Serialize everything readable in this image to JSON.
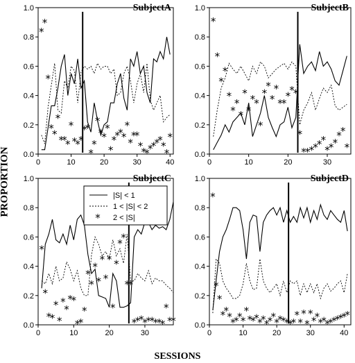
{
  "figure": {
    "xlabel": "SESSIONS",
    "ylabel": "PROPORTION",
    "legend": {
      "panel": "SubjectC",
      "entries": [
        "|S| < 1",
        "1 < |S| < 2",
        "2 < |S|"
      ]
    }
  },
  "chart_data": [
    {
      "type": "line",
      "title": "SubjectA",
      "xlim": [
        0,
        41
      ],
      "ylim": [
        0,
        1.0
      ],
      "xticks": [
        0,
        10,
        20,
        30,
        40
      ],
      "yticks": [
        0.0,
        0.2,
        0.4,
        0.6,
        0.8,
        1.0
      ],
      "phase_line_x": 13.5,
      "series": [
        {
          "name": "|S| < 1",
          "style": "solid",
          "x": [
            1,
            2,
            3,
            4,
            5,
            6,
            7,
            8,
            9,
            10,
            11,
            12,
            13,
            14,
            15,
            16,
            17,
            18,
            19,
            20,
            21,
            22,
            23,
            24,
            25,
            26,
            27,
            28,
            29,
            30,
            31,
            32,
            33,
            34,
            35,
            36,
            37,
            38,
            39,
            40
          ],
          "values": [
            0.03,
            0.03,
            0.18,
            0.33,
            0.33,
            0.45,
            0.6,
            0.68,
            0.4,
            0.55,
            0.48,
            0.65,
            0.45,
            0.5,
            0.22,
            0.15,
            0.35,
            0.23,
            0.13,
            0.2,
            0.22,
            0.35,
            0.35,
            0.48,
            0.55,
            0.38,
            0.3,
            0.65,
            0.6,
            0.7,
            0.55,
            0.6,
            0.42,
            0.35,
            0.65,
            0.63,
            0.7,
            0.65,
            0.8,
            0.68
          ]
        },
        {
          "name": "1 < |S| < 2",
          "style": "dotted",
          "x": [
            1,
            2,
            3,
            4,
            5,
            6,
            7,
            8,
            9,
            10,
            11,
            12,
            13,
            14,
            15,
            16,
            17,
            18,
            19,
            20,
            21,
            22,
            23,
            24,
            25,
            26,
            27,
            28,
            29,
            30,
            31,
            32,
            33,
            34,
            35,
            36,
            37,
            38,
            39,
            40
          ],
          "values": [
            0.13,
            0.07,
            0.32,
            0.47,
            0.62,
            0.3,
            0.28,
            0.5,
            0.45,
            0.6,
            0.57,
            0.35,
            0.56,
            0.6,
            0.58,
            0.6,
            0.55,
            0.62,
            0.58,
            0.6,
            0.6,
            0.55,
            0.58,
            0.4,
            0.42,
            0.55,
            0.6,
            0.5,
            0.35,
            0.48,
            0.55,
            0.42,
            0.62,
            0.37,
            0.3,
            0.35,
            0.4,
            0.22,
            0.25,
            0.27
          ]
        },
        {
          "name": "2 < |S|",
          "style": "asterisk",
          "x": [
            1,
            2,
            3,
            4,
            5,
            6,
            7,
            8,
            9,
            10,
            11,
            12,
            13,
            14,
            15,
            16,
            17,
            18,
            19,
            20,
            21,
            22,
            23,
            24,
            25,
            26,
            27,
            28,
            29,
            30,
            31,
            32,
            33,
            34,
            35,
            36,
            37,
            38,
            39,
            40
          ],
          "values": [
            0.84,
            0.9,
            0.52,
            0.18,
            0.14,
            0.25,
            0.1,
            0.1,
            0.07,
            0.2,
            0.09,
            0.07,
            0.1,
            0.17,
            0.18,
            0.01,
            0.07,
            0.23,
            0.15,
            0.12,
            0.18,
            0.03,
            0.1,
            0.13,
            0.15,
            0.12,
            0.2,
            0.08,
            0.13,
            0.13,
            0.06,
            0.02,
            0.01,
            0.04,
            0.06,
            0.08,
            0.1,
            0.06,
            0.01,
            0.12
          ]
        }
      ]
    },
    {
      "type": "line",
      "title": "SubjectB",
      "xlim": [
        0,
        36
      ],
      "ylim": [
        0,
        1.0
      ],
      "xticks": [
        0,
        10,
        20,
        30
      ],
      "yticks": [
        0.0,
        0.2,
        0.4,
        0.6,
        0.8,
        1.0
      ],
      "phase_line_x": 22.5,
      "series": [
        {
          "name": "|S| < 1",
          "style": "solid",
          "x": [
            1,
            2,
            3,
            4,
            5,
            6,
            7,
            8,
            9,
            10,
            11,
            12,
            13,
            14,
            15,
            16,
            17,
            18,
            19,
            20,
            21,
            22,
            23,
            24,
            25,
            26,
            27,
            28,
            29,
            30,
            31,
            32,
            33,
            34,
            35
          ],
          "values": [
            0.03,
            0.08,
            0.13,
            0.2,
            0.15,
            0.22,
            0.25,
            0.28,
            0.2,
            0.35,
            0.12,
            0.2,
            0.28,
            0.4,
            0.25,
            0.18,
            0.12,
            0.2,
            0.22,
            0.32,
            0.18,
            0.25,
            0.75,
            0.55,
            0.6,
            0.63,
            0.57,
            0.7,
            0.6,
            0.63,
            0.58,
            0.5,
            0.47,
            0.57,
            0.67
          ]
        },
        {
          "name": "1 < |S| < 2",
          "style": "dotted",
          "x": [
            1,
            2,
            3,
            4,
            5,
            6,
            7,
            8,
            9,
            10,
            11,
            12,
            13,
            14,
            15,
            16,
            17,
            18,
            19,
            20,
            21,
            22,
            23,
            24,
            25,
            26,
            27,
            28,
            29,
            30,
            31,
            32,
            33,
            34,
            35
          ],
          "values": [
            0.12,
            0.3,
            0.45,
            0.52,
            0.62,
            0.58,
            0.55,
            0.6,
            0.55,
            0.5,
            0.6,
            0.55,
            0.63,
            0.6,
            0.52,
            0.55,
            0.58,
            0.6,
            0.62,
            0.58,
            0.63,
            0.6,
            0.2,
            0.3,
            0.35,
            0.42,
            0.3,
            0.38,
            0.45,
            0.42,
            0.47,
            0.33,
            0.3,
            0.32,
            0.34
          ]
        },
        {
          "name": "2 < |S|",
          "style": "asterisk",
          "x": [
            1,
            2,
            3,
            4,
            5,
            6,
            7,
            8,
            9,
            10,
            11,
            12,
            13,
            14,
            15,
            16,
            17,
            18,
            19,
            20,
            21,
            22,
            23,
            24,
            25,
            26,
            27,
            28,
            29,
            30,
            31,
            32,
            33,
            34,
            35
          ],
          "values": [
            0.91,
            0.67,
            0.5,
            0.57,
            0.4,
            0.3,
            0.35,
            0.27,
            0.42,
            0.3,
            0.38,
            0.35,
            0.2,
            0.42,
            0.47,
            0.38,
            0.45,
            0.35,
            0.35,
            0.4,
            0.44,
            0.42,
            0.14,
            0.02,
            0.02,
            0.03,
            0.05,
            0.07,
            0.1,
            0.03,
            0.05,
            0.08,
            0.13,
            0.16,
            0.05
          ]
        }
      ]
    },
    {
      "type": "line",
      "title": "SubjectC",
      "xlim": [
        0,
        38
      ],
      "ylim": [
        0,
        1.0
      ],
      "xticks": [
        0,
        10,
        20,
        30
      ],
      "yticks": [
        0.0,
        0.2,
        0.4,
        0.6,
        0.8,
        1.0
      ],
      "phase_line_x": 25.5,
      "series": [
        {
          "name": "|S| < 1",
          "style": "solid",
          "x": [
            1,
            2,
            3,
            4,
            5,
            6,
            7,
            8,
            9,
            10,
            11,
            12,
            13,
            14,
            15,
            16,
            17,
            18,
            19,
            20,
            21,
            22,
            23,
            24,
            25,
            26,
            27,
            28,
            29,
            30,
            31,
            32,
            33,
            34,
            35,
            36,
            37,
            38
          ],
          "values": [
            0.25,
            0.55,
            0.62,
            0.72,
            0.58,
            0.56,
            0.62,
            0.55,
            0.68,
            0.58,
            0.72,
            0.75,
            0.68,
            0.48,
            0.35,
            0.38,
            0.2,
            0.19,
            0.18,
            0.12,
            0.35,
            0.3,
            0.12,
            0.12,
            0.13,
            0.15,
            0.6,
            0.65,
            0.62,
            0.7,
            0.7,
            0.65,
            0.68,
            0.66,
            0.67,
            0.65,
            0.72,
            0.84
          ]
        },
        {
          "name": "1 < |S| < 2",
          "style": "dotted",
          "x": [
            1,
            2,
            3,
            4,
            5,
            6,
            7,
            8,
            9,
            10,
            11,
            12,
            13,
            14,
            15,
            16,
            17,
            18,
            19,
            20,
            21,
            22,
            23,
            24,
            25,
            26,
            27,
            28,
            29,
            30,
            31,
            32,
            33,
            34,
            35,
            36,
            37,
            38
          ],
          "values": [
            0.3,
            0.28,
            0.35,
            0.28,
            0.4,
            0.3,
            0.32,
            0.43,
            0.38,
            0.3,
            0.37,
            0.25,
            0.2,
            0.2,
            0.48,
            0.6,
            0.55,
            0.47,
            0.5,
            0.45,
            0.58,
            0.47,
            0.52,
            0.42,
            0.62,
            0.3,
            0.3,
            0.35,
            0.32,
            0.3,
            0.37,
            0.28,
            0.32,
            0.3,
            0.3,
            0.27,
            0.25,
            0.22
          ]
        },
        {
          "name": "2 < |S|",
          "style": "asterisk",
          "x": [
            1,
            2,
            3,
            4,
            5,
            6,
            7,
            8,
            9,
            10,
            11,
            12,
            13,
            14,
            15,
            16,
            17,
            18,
            19,
            20,
            21,
            22,
            23,
            24,
            25,
            26,
            27,
            28,
            29,
            30,
            31,
            32,
            33,
            34,
            35,
            36,
            37,
            38
          ],
          "values": [
            0.52,
            0.22,
            0.06,
            0.05,
            0.14,
            0.03,
            0.16,
            0.11,
            0.18,
            0.17,
            0.01,
            0.02,
            0.1,
            0.35,
            0.28,
            0.4,
            0.3,
            0.45,
            0.32,
            0.45,
            0.12,
            0.42,
            0.56,
            0.6,
            0.28,
            0.28,
            0.02,
            0.03,
            0.04,
            0.02,
            0.03,
            0.03,
            0.02,
            0.02,
            0.01,
            0.12,
            0.03,
            0.03
          ]
        }
      ]
    },
    {
      "type": "line",
      "title": "SubjectD",
      "xlim": [
        0,
        42
      ],
      "ylim": [
        0,
        1.0
      ],
      "xticks": [
        0,
        10,
        20,
        30,
        40
      ],
      "yticks": [
        0.0,
        0.2,
        0.4,
        0.6,
        0.8,
        1.0
      ],
      "phase_line_x": 23.5,
      "series": [
        {
          "name": "|S| < 1",
          "style": "solid",
          "x": [
            1,
            2,
            3,
            4,
            5,
            6,
            7,
            8,
            9,
            10,
            11,
            12,
            13,
            14,
            15,
            16,
            17,
            18,
            19,
            20,
            21,
            22,
            23,
            24,
            25,
            26,
            27,
            28,
            29,
            30,
            31,
            32,
            33,
            34,
            35,
            36,
            37,
            38,
            39,
            40,
            41
          ],
          "values": [
            0.1,
            0.3,
            0.5,
            0.6,
            0.65,
            0.72,
            0.8,
            0.8,
            0.78,
            0.65,
            0.45,
            0.7,
            0.75,
            0.74,
            0.5,
            0.7,
            0.75,
            0.78,
            0.8,
            0.75,
            0.8,
            0.7,
            0.78,
            0.7,
            0.74,
            0.7,
            0.8,
            0.73,
            0.8,
            0.7,
            0.78,
            0.72,
            0.82,
            0.75,
            0.72,
            0.78,
            0.75,
            0.72,
            0.7,
            0.78,
            0.64
          ]
        },
        {
          "name": "1 < |S| < 2",
          "style": "dotted",
          "x": [
            1,
            2,
            3,
            4,
            5,
            6,
            7,
            8,
            9,
            10,
            11,
            12,
            13,
            14,
            15,
            16,
            17,
            18,
            19,
            20,
            21,
            22,
            23,
            24,
            25,
            26,
            27,
            28,
            29,
            30,
            31,
            32,
            33,
            34,
            35,
            36,
            37,
            38,
            39,
            40,
            41
          ],
          "values": [
            0.08,
            0.45,
            0.42,
            0.3,
            0.25,
            0.22,
            0.18,
            0.18,
            0.2,
            0.28,
            0.42,
            0.3,
            0.24,
            0.25,
            0.45,
            0.3,
            0.25,
            0.22,
            0.25,
            0.28,
            0.2,
            0.3,
            0.22,
            0.3,
            0.28,
            0.3,
            0.2,
            0.28,
            0.22,
            0.28,
            0.22,
            0.28,
            0.18,
            0.25,
            0.28,
            0.23,
            0.25,
            0.28,
            0.3,
            0.22,
            0.35
          ]
        },
        {
          "name": "2 < |S|",
          "style": "asterisk",
          "x": [
            1,
            2,
            3,
            4,
            5,
            6,
            7,
            8,
            9,
            10,
            11,
            12,
            13,
            14,
            15,
            16,
            17,
            18,
            19,
            20,
            21,
            22,
            23,
            24,
            25,
            26,
            27,
            28,
            29,
            30,
            31,
            32,
            33,
            34,
            35,
            36,
            37,
            38,
            39,
            40,
            41
          ],
          "values": [
            0.88,
            0.27,
            0.18,
            0.07,
            0.1,
            0.06,
            0.02,
            0.03,
            0.06,
            0.03,
            0.1,
            0.04,
            0.03,
            0.05,
            0.02,
            0.04,
            0.01,
            0.03,
            0.06,
            0.02,
            0.04,
            0.03,
            0.02,
            0.01,
            0.02,
            0.07,
            0.02,
            0.08,
            0.01,
            0.08,
            0.03,
            0.06,
            0.02,
            0.03,
            0.01,
            0.02,
            0.03,
            0.04,
            0.05,
            0.06,
            0.07
          ]
        }
      ]
    }
  ]
}
